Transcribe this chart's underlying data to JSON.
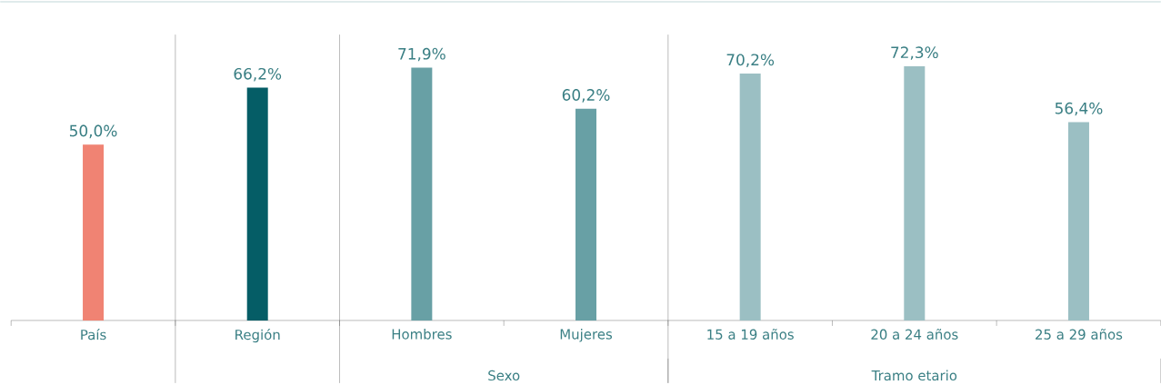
{
  "chart_data": {
    "type": "bar",
    "categories": [
      "País",
      "Región",
      "Hombres",
      "Mujeres",
      "15 a 19 años",
      "20 a 24 años",
      "25 a 29 años"
    ],
    "values": [
      50.0,
      66.2,
      71.9,
      60.2,
      70.2,
      72.3,
      56.4
    ],
    "colors": [
      "#f08373",
      "#055d66",
      "#68a0a5",
      "#68a0a5",
      "#9bbfc3",
      "#9bbfc3",
      "#9bbfc3"
    ],
    "value_labels": [
      "50,0%",
      "66,2%",
      "71,9%",
      "60,2%",
      "70,2%",
      "72,3%",
      "56,4%"
    ],
    "annotations": [
      "Sexo",
      "Tramo etario"
    ]
  }
}
